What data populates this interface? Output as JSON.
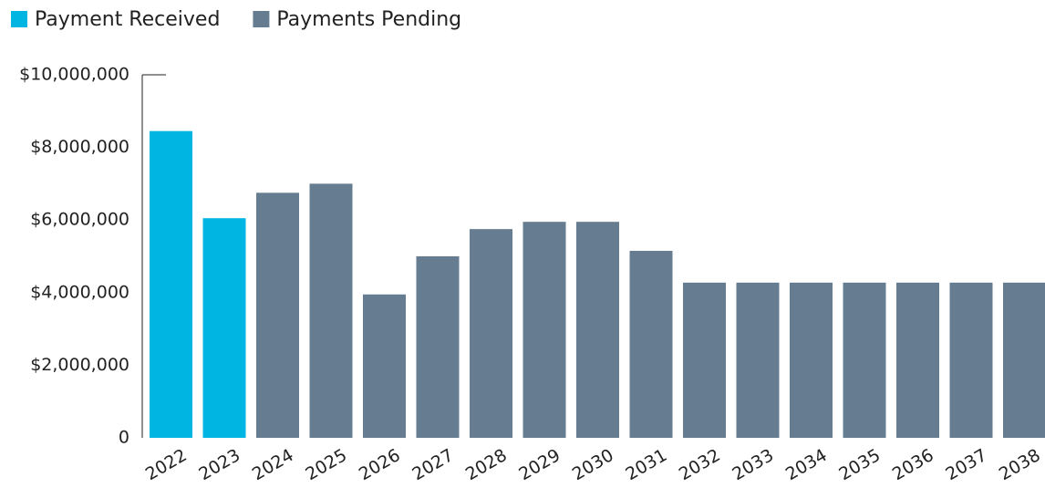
{
  "chart_data": {
    "type": "bar",
    "categories": [
      "2022",
      "2023",
      "2024",
      "2025",
      "2026",
      "2027",
      "2028",
      "2029",
      "2030",
      "2031",
      "2032",
      "2033",
      "2034",
      "2035",
      "2036",
      "2037",
      "2038"
    ],
    "series": [
      {
        "name": "Payment Received",
        "color": "#00b5e2",
        "values": [
          8450000,
          6050000,
          null,
          null,
          null,
          null,
          null,
          null,
          null,
          null,
          null,
          null,
          null,
          null,
          null,
          null,
          null
        ]
      },
      {
        "name": "Payments Pending",
        "color": "#667d91",
        "values": [
          null,
          null,
          6750000,
          7000000,
          3950000,
          5000000,
          5750000,
          5950000,
          5950000,
          5150000,
          4275000,
          4275000,
          4275000,
          4275000,
          4275000,
          4275000,
          4275000
        ]
      }
    ],
    "ylim": [
      0,
      10000000
    ],
    "yticks": [
      0,
      {
        "value": 2000000,
        "label": "$2,000,000"
      },
      {
        "value": 4000000,
        "label": "$4,000,000"
      },
      {
        "value": 6000000,
        "label": "$6,000,000"
      },
      {
        "value": 8000000,
        "label": "$8,000,000"
      },
      {
        "value": 10000000,
        "label": "$10,000,000"
      }
    ],
    "legend": "top-left"
  }
}
